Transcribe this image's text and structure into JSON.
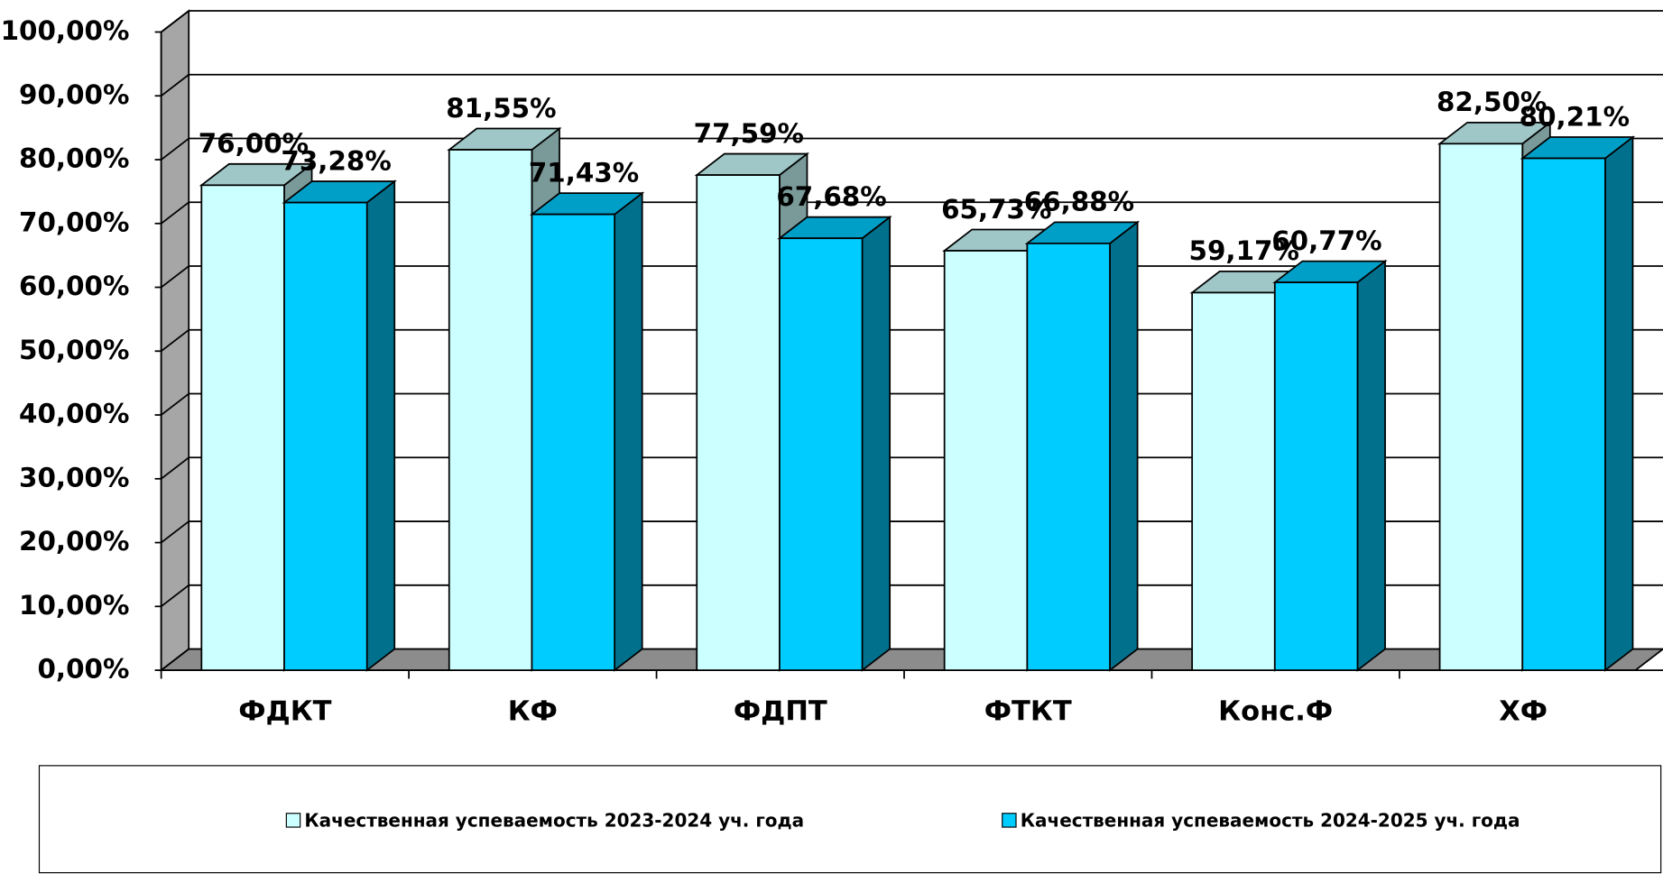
{
  "chart_data": {
    "type": "bar3d",
    "categories": [
      "ФДКТ",
      "КФ",
      "ФДПТ",
      "ФТКТ",
      "Конс.Ф",
      "ХФ"
    ],
    "series": [
      {
        "name": "Качественная успеваемость 2023-2024 уч. года",
        "color": "#ccffff",
        "values": [
          76.0,
          81.55,
          77.59,
          65.73,
          59.17,
          82.5
        ],
        "value_labels": [
          "76,00%",
          "81,55%",
          "77,59%",
          "65,73%",
          "59,17%",
          "82,50%"
        ]
      },
      {
        "name": "Качественная успеваемость 2024-2025 уч. года",
        "color": "#00ccff",
        "values": [
          73.28,
          71.43,
          67.68,
          66.88,
          60.77,
          80.21
        ],
        "value_labels": [
          "73,28%",
          "71,43%",
          "67,68%",
          "66,88%",
          "60,77%",
          "80,21%"
        ]
      }
    ],
    "ylim": [
      0,
      100
    ],
    "yticks": [
      {
        "value": 0,
        "label": "0,00%"
      },
      {
        "value": 10,
        "label": "10,00%"
      },
      {
        "value": 20,
        "label": "20,00%"
      },
      {
        "value": 30,
        "label": "30,00%"
      },
      {
        "value": 40,
        "label": "40,00%"
      },
      {
        "value": 50,
        "label": "50,00%"
      },
      {
        "value": 60,
        "label": "60,00%"
      },
      {
        "value": 70,
        "label": "70,00%"
      },
      {
        "value": 80,
        "label": "80,00%"
      },
      {
        "value": 90,
        "label": "90,00%"
      },
      {
        "value": 100,
        "label": "100,00%"
      }
    ],
    "grid": true,
    "legend": "bottom"
  }
}
